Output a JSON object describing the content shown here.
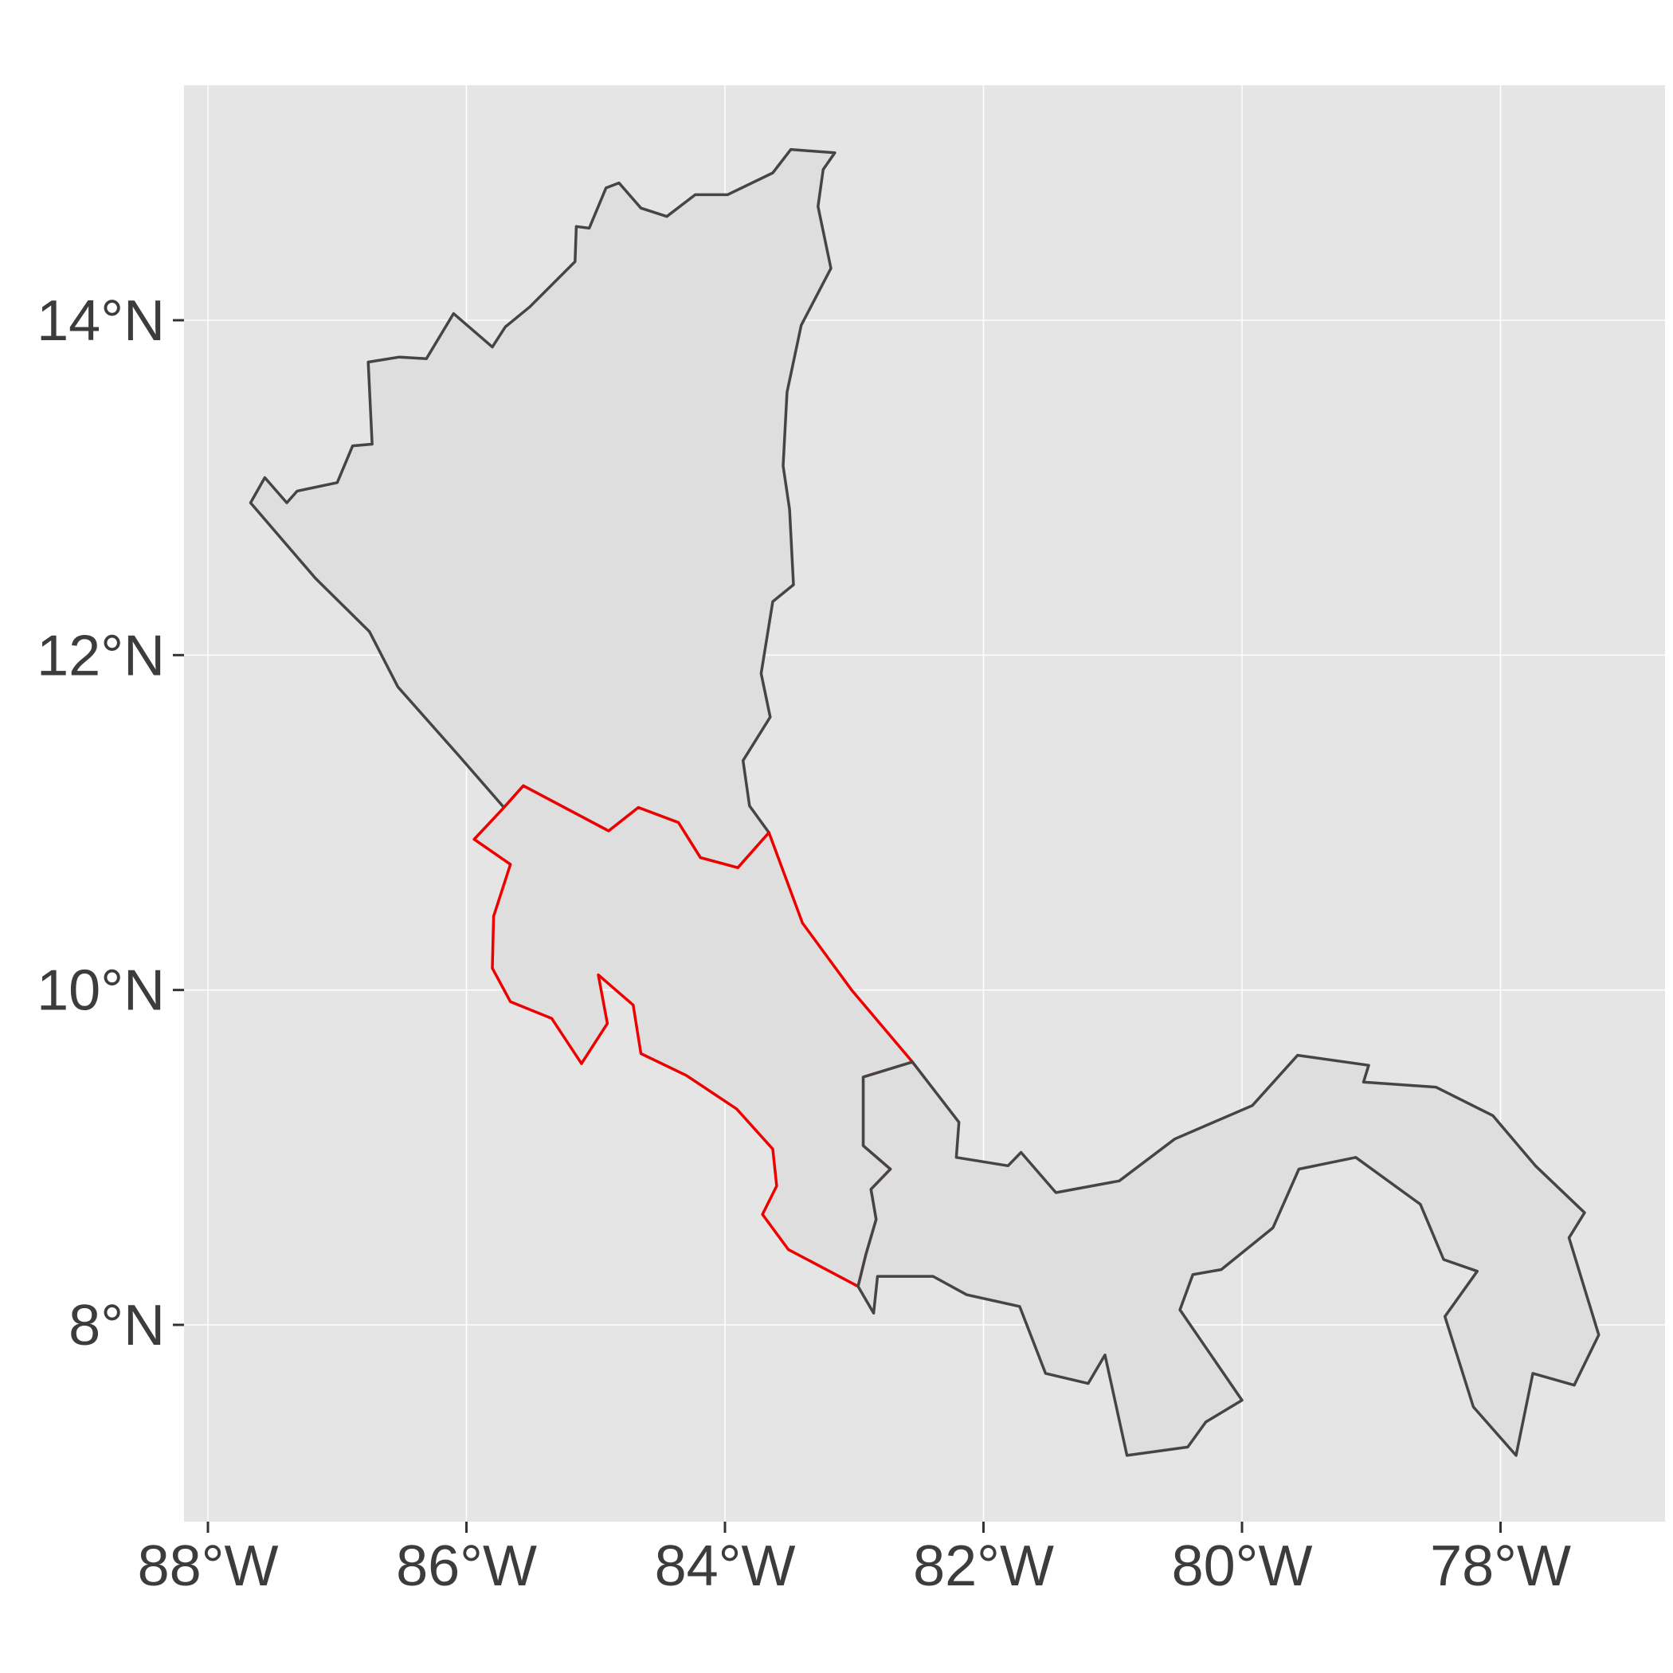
{
  "map": {
    "projection": "equirectangular",
    "lon_range": [
      -88.3,
      -76.5
    ],
    "lat_range": [
      6.93,
      15.53
    ],
    "panel_background": "#e5e5e5",
    "grid": true,
    "x_ticks": [
      {
        "lon": -88,
        "label": "88°W"
      },
      {
        "lon": -86,
        "label": "86°W"
      },
      {
        "lon": -84,
        "label": "84°W"
      },
      {
        "lon": -82,
        "label": "82°W"
      },
      {
        "lon": -80,
        "label": "80°W"
      },
      {
        "lon": -78,
        "label": "78°W"
      }
    ],
    "y_ticks": [
      {
        "lat": 8,
        "label": "8°N"
      },
      {
        "lat": 10,
        "label": "10°N"
      },
      {
        "lat": 12,
        "label": "12°N"
      },
      {
        "lat": 14,
        "label": "14°N"
      }
    ],
    "shapes": [
      {
        "id": "nicaragua",
        "fill": "#dedede",
        "stroke": "#454545",
        "coords": [
          [
            -87.67,
            12.91
          ],
          [
            -87.56,
            13.06
          ],
          [
            -87.39,
            12.91
          ],
          [
            -87.31,
            12.98
          ],
          [
            -87.0,
            13.03
          ],
          [
            -86.88,
            13.25
          ],
          [
            -86.73,
            13.26
          ],
          [
            -86.76,
            13.75
          ],
          [
            -86.52,
            13.78
          ],
          [
            -86.31,
            13.77
          ],
          [
            -86.1,
            14.04
          ],
          [
            -85.8,
            13.84
          ],
          [
            -85.7,
            13.96
          ],
          [
            -85.51,
            14.08
          ],
          [
            -85.16,
            14.35
          ],
          [
            -85.15,
            14.56
          ],
          [
            -85.05,
            14.55
          ],
          [
            -84.92,
            14.79
          ],
          [
            -84.82,
            14.82
          ],
          [
            -84.65,
            14.67
          ],
          [
            -84.45,
            14.62
          ],
          [
            -84.23,
            14.75
          ],
          [
            -83.98,
            14.75
          ],
          [
            -83.63,
            14.88
          ],
          [
            -83.49,
            15.02
          ],
          [
            -83.15,
            15.0
          ],
          [
            -83.24,
            14.9
          ],
          [
            -83.28,
            14.68
          ],
          [
            -83.18,
            14.31
          ],
          [
            -83.41,
            13.97
          ],
          [
            -83.52,
            13.57
          ],
          [
            -83.55,
            13.13
          ],
          [
            -83.5,
            12.87
          ],
          [
            -83.47,
            12.42
          ],
          [
            -83.63,
            12.32
          ],
          [
            -83.72,
            11.89
          ],
          [
            -83.65,
            11.63
          ],
          [
            -83.86,
            11.37
          ],
          [
            -83.81,
            11.1
          ],
          [
            -83.66,
            10.94
          ],
          [
            -83.9,
            10.73
          ],
          [
            -84.19,
            10.79
          ],
          [
            -84.36,
            11.0
          ],
          [
            -84.67,
            11.09
          ],
          [
            -84.9,
            10.95
          ],
          [
            -85.56,
            11.22
          ],
          [
            -85.71,
            11.09
          ],
          [
            -86.06,
            11.4
          ],
          [
            -86.53,
            11.81
          ],
          [
            -86.75,
            12.14
          ],
          [
            -87.17,
            12.46
          ],
          [
            -87.67,
            12.91
          ]
        ]
      },
      {
        "id": "costa-rica",
        "fill": "#dedede",
        "stroke": "#ee0000",
        "coords": [
          [
            -82.55,
            9.57
          ],
          [
            -82.93,
            9.48
          ],
          [
            -82.93,
            9.07
          ],
          [
            -82.72,
            8.93
          ],
          [
            -82.87,
            8.81
          ],
          [
            -82.83,
            8.63
          ],
          [
            -82.91,
            8.42
          ],
          [
            -82.97,
            8.23
          ],
          [
            -83.51,
            8.45
          ],
          [
            -83.71,
            8.66
          ],
          [
            -83.6,
            8.83
          ],
          [
            -83.63,
            9.05
          ],
          [
            -83.91,
            9.29
          ],
          [
            -84.3,
            9.49
          ],
          [
            -84.65,
            9.62
          ],
          [
            -84.71,
            9.91
          ],
          [
            -84.98,
            10.09
          ],
          [
            -84.91,
            9.8
          ],
          [
            -85.11,
            9.56
          ],
          [
            -85.34,
            9.83
          ],
          [
            -85.66,
            9.93
          ],
          [
            -85.8,
            10.13
          ],
          [
            -85.79,
            10.44
          ],
          [
            -85.66,
            10.75
          ],
          [
            -85.94,
            10.9
          ],
          [
            -85.71,
            11.09
          ],
          [
            -85.56,
            11.22
          ],
          [
            -84.9,
            10.95
          ],
          [
            -84.67,
            11.09
          ],
          [
            -84.36,
            11.0
          ],
          [
            -84.19,
            10.79
          ],
          [
            -83.9,
            10.73
          ],
          [
            -83.66,
            10.94
          ],
          [
            -83.4,
            10.4
          ],
          [
            -83.02,
            10.0
          ],
          [
            -82.55,
            9.57
          ]
        ]
      },
      {
        "id": "panama",
        "fill": "#dedede",
        "stroke": "#454545",
        "coords": [
          [
            -77.35,
            8.67
          ],
          [
            -77.47,
            8.52
          ],
          [
            -77.24,
            7.94
          ],
          [
            -77.43,
            7.64
          ],
          [
            -77.75,
            7.71
          ],
          [
            -77.88,
            7.22
          ],
          [
            -78.21,
            7.51
          ],
          [
            -78.43,
            8.05
          ],
          [
            -78.18,
            8.32
          ],
          [
            -78.44,
            8.39
          ],
          [
            -78.62,
            8.72
          ],
          [
            -79.12,
            9.0
          ],
          [
            -79.56,
            8.93
          ],
          [
            -79.76,
            8.58
          ],
          [
            -80.16,
            8.33
          ],
          [
            -80.38,
            8.3
          ],
          [
            -80.48,
            8.09
          ],
          [
            -80.0,
            7.55
          ],
          [
            -80.28,
            7.42
          ],
          [
            -80.42,
            7.27
          ],
          [
            -80.89,
            7.22
          ],
          [
            -81.06,
            7.82
          ],
          [
            -81.19,
            7.65
          ],
          [
            -81.52,
            7.71
          ],
          [
            -81.72,
            8.11
          ],
          [
            -82.13,
            8.18
          ],
          [
            -82.39,
            8.29
          ],
          [
            -82.82,
            8.29
          ],
          [
            -82.85,
            8.07
          ],
          [
            -82.97,
            8.23
          ],
          [
            -82.91,
            8.42
          ],
          [
            -82.83,
            8.63
          ],
          [
            -82.87,
            8.81
          ],
          [
            -82.72,
            8.93
          ],
          [
            -82.93,
            9.07
          ],
          [
            -82.93,
            9.48
          ],
          [
            -82.55,
            9.57
          ],
          [
            -82.19,
            9.21
          ],
          [
            -82.21,
            9.0
          ],
          [
            -81.81,
            8.95
          ],
          [
            -81.71,
            9.03
          ],
          [
            -81.44,
            8.79
          ],
          [
            -80.95,
            8.86
          ],
          [
            -80.52,
            9.11
          ],
          [
            -79.92,
            9.31
          ],
          [
            -79.57,
            9.61
          ],
          [
            -79.02,
            9.55
          ],
          [
            -79.06,
            9.45
          ],
          [
            -78.5,
            9.42
          ],
          [
            -78.06,
            9.25
          ],
          [
            -77.73,
            8.95
          ],
          [
            -77.35,
            8.67
          ]
        ]
      }
    ]
  }
}
